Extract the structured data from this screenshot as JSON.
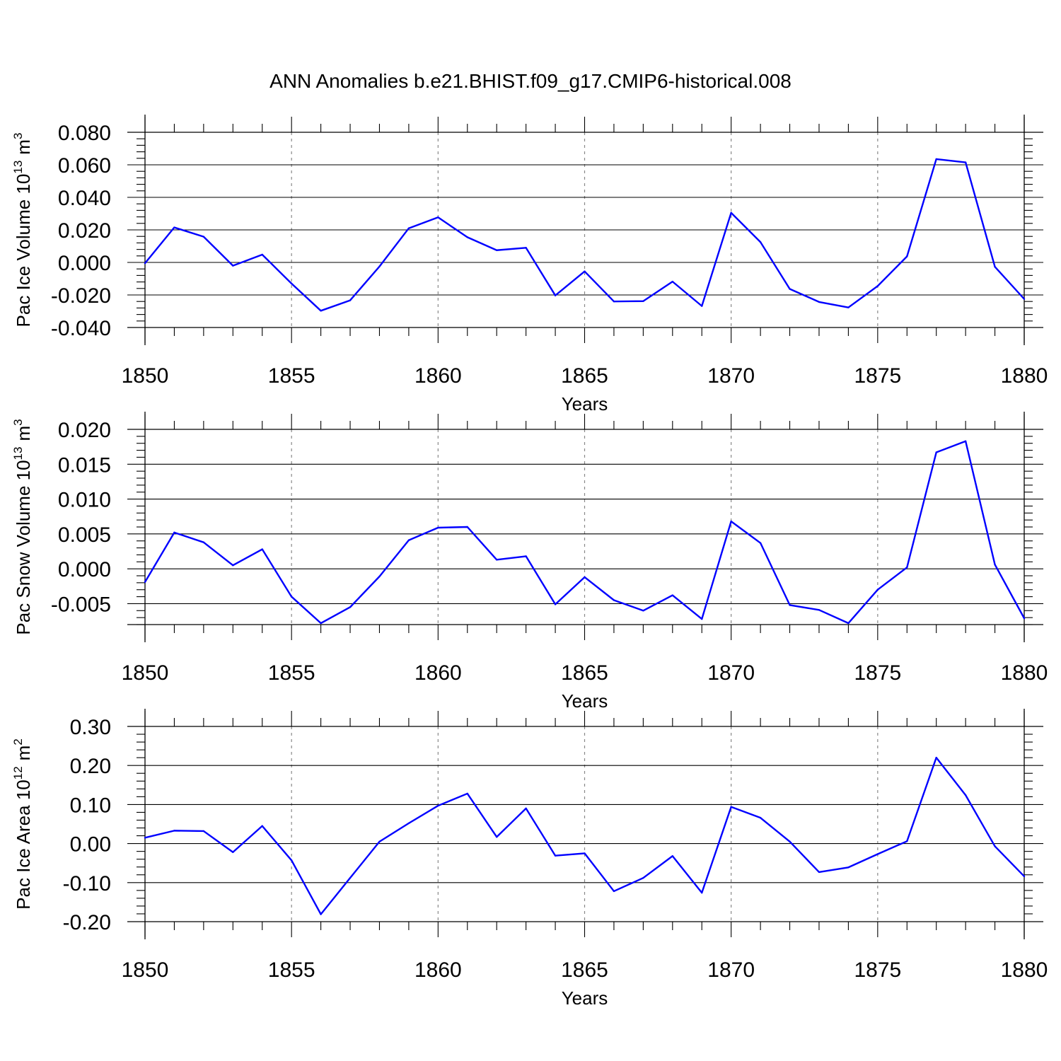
{
  "chart_data": {
    "title": "ANN Anomalies b.e21.BHIST.f09_g17.CMIP6-historical.008",
    "series_color": "#0000ff",
    "panels": [
      {
        "type": "line",
        "ylabel_main": "Pac Ice Volume 10",
        "ylabel_exp": "13",
        "ylabel_unit": "m",
        "ylabel_unit_exp": "3",
        "xlabel": "Years",
        "xlim": [
          1850,
          1880
        ],
        "ylim": [
          -0.04,
          0.08
        ],
        "yticks": [
          -0.04,
          -0.02,
          0.0,
          0.02,
          0.04,
          0.06,
          0.08
        ],
        "ytick_labels": [
          "-0.040",
          "-0.020",
          "0.000",
          "0.020",
          "0.040",
          "0.060",
          "0.080"
        ],
        "yminor_step": 0.004,
        "xticks": [
          1850,
          1855,
          1860,
          1865,
          1870,
          1875,
          1880
        ],
        "xtick_labels": [
          "1850",
          "1855",
          "1860",
          "1865",
          "1870",
          "1875",
          "1880"
        ],
        "x": [
          1850,
          1851,
          1852,
          1853,
          1854,
          1855,
          1856,
          1857,
          1858,
          1859,
          1860,
          1861,
          1862,
          1863,
          1864,
          1865,
          1866,
          1867,
          1868,
          1869,
          1870,
          1871,
          1872,
          1873,
          1874,
          1875,
          1876,
          1877,
          1878,
          1879,
          1880
        ],
        "values": [
          -0.0005,
          0.0215,
          0.0158,
          -0.002,
          0.0048,
          -0.013,
          -0.0297,
          -0.0233,
          -0.0025,
          0.021,
          0.0277,
          0.0155,
          0.0075,
          0.009,
          -0.0203,
          -0.0055,
          -0.024,
          -0.0238,
          -0.0118,
          -0.0268,
          0.0305,
          0.0125,
          -0.0163,
          -0.0243,
          -0.0277,
          -0.0145,
          0.0037,
          0.0635,
          0.0615,
          -0.0027,
          -0.0225
        ]
      },
      {
        "type": "line",
        "ylabel_main": "Pac Snow Volume 10",
        "ylabel_exp": "13",
        "ylabel_unit": "m",
        "ylabel_unit_exp": "3",
        "xlabel": "Years",
        "xlim": [
          1850,
          1880
        ],
        "ylim": [
          -0.008,
          0.02
        ],
        "yticks": [
          -0.005,
          0.0,
          0.005,
          0.01,
          0.015,
          0.02
        ],
        "ytick_labels": [
          "-0.005",
          "0.000",
          "0.005",
          "0.010",
          "0.015",
          "0.020"
        ],
        "yminor_step": 0.001,
        "xticks": [
          1850,
          1855,
          1860,
          1865,
          1870,
          1875,
          1880
        ],
        "xtick_labels": [
          "1850",
          "1855",
          "1860",
          "1865",
          "1870",
          "1875",
          "1880"
        ],
        "x": [
          1850,
          1851,
          1852,
          1853,
          1854,
          1855,
          1856,
          1857,
          1858,
          1859,
          1860,
          1861,
          1862,
          1863,
          1864,
          1865,
          1866,
          1867,
          1868,
          1869,
          1870,
          1871,
          1872,
          1873,
          1874,
          1875,
          1876,
          1877,
          1878,
          1879,
          1880
        ],
        "values": [
          -0.0019,
          0.0052,
          0.0038,
          0.0005,
          0.0028,
          -0.004,
          -0.0078,
          -0.0055,
          -0.0011,
          0.0041,
          0.0059,
          0.006,
          0.0013,
          0.0018,
          -0.0051,
          -0.0012,
          -0.0045,
          -0.006,
          -0.0038,
          -0.0072,
          0.0068,
          0.0037,
          -0.0052,
          -0.0059,
          -0.0078,
          -0.003,
          0.0002,
          0.0167,
          0.0183,
          0.0006,
          -0.0071
        ]
      },
      {
        "type": "line",
        "ylabel_main": "Pac Ice Area 10",
        "ylabel_exp": "12",
        "ylabel_unit": "m",
        "ylabel_unit_exp": "2",
        "xlabel": "Years",
        "xlim": [
          1850,
          1880
        ],
        "ylim": [
          -0.2,
          0.3
        ],
        "yticks": [
          -0.2,
          -0.1,
          0.0,
          0.1,
          0.2,
          0.3
        ],
        "ytick_labels": [
          "-0.20",
          "-0.10",
          "0.00",
          "0.10",
          "0.20",
          "0.30"
        ],
        "yminor_step": 0.02,
        "xticks": [
          1850,
          1855,
          1860,
          1865,
          1870,
          1875,
          1880
        ],
        "xtick_labels": [
          "1850",
          "1855",
          "1860",
          "1865",
          "1870",
          "1875",
          "1880"
        ],
        "x": [
          1850,
          1851,
          1852,
          1853,
          1854,
          1855,
          1856,
          1857,
          1858,
          1859,
          1860,
          1861,
          1862,
          1863,
          1864,
          1865,
          1866,
          1867,
          1868,
          1869,
          1870,
          1871,
          1872,
          1873,
          1874,
          1875,
          1876,
          1877,
          1878,
          1879,
          1880
        ],
        "values": [
          0.015,
          0.033,
          0.032,
          -0.022,
          0.045,
          -0.043,
          -0.181,
          -0.088,
          0.005,
          0.052,
          0.097,
          0.128,
          0.017,
          0.09,
          -0.031,
          -0.025,
          -0.122,
          -0.088,
          -0.032,
          -0.126,
          0.094,
          0.066,
          0.005,
          -0.073,
          -0.061,
          -0.027,
          0.006,
          0.22,
          0.124,
          -0.007,
          -0.084
        ]
      }
    ]
  }
}
